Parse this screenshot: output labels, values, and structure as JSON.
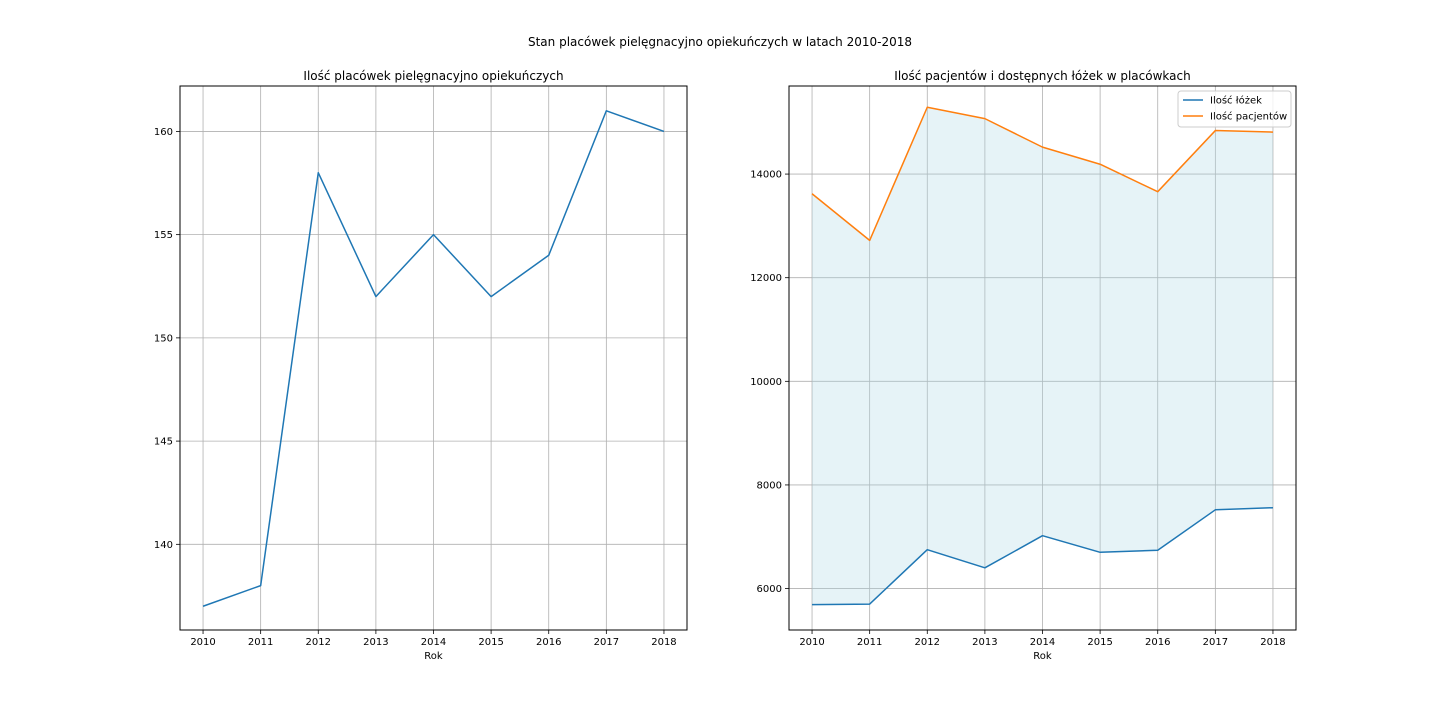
{
  "figure": {
    "suptitle": "Stan placówek pielęgnacyjno opiekuńczych w latach 2010-2018"
  },
  "chart_data": [
    {
      "type": "line",
      "title": "Ilość placówek pielęgnacyjno opiekuńczych",
      "xlabel": "Rok",
      "ylabel": "",
      "x": [
        2010,
        2011,
        2012,
        2013,
        2014,
        2015,
        2016,
        2017,
        2018
      ],
      "series": [
        {
          "values": [
            137,
            138,
            158,
            152,
            155,
            152,
            154,
            161,
            160
          ],
          "color": "#1f77b4"
        }
      ],
      "xlim": [
        2009.6,
        2018.4
      ],
      "ylim": [
        135.85,
        162.2
      ],
      "yticks": [
        140,
        145,
        150,
        155,
        160
      ],
      "xticks": [
        "2010",
        "2011",
        "2012",
        "2013",
        "2014",
        "2015",
        "2016",
        "2017",
        "2018"
      ],
      "grid": true,
      "legend": false
    },
    {
      "type": "line",
      "title": "Ilość pacjentów i dostępnych łóżek w placówkach",
      "xlabel": "Rok",
      "ylabel": "",
      "x": [
        2010,
        2011,
        2012,
        2013,
        2014,
        2015,
        2016,
        2017,
        2018
      ],
      "series": [
        {
          "name": "Ilość łóżek",
          "values": [
            5690,
            5700,
            6750,
            6400,
            7020,
            6700,
            6740,
            7520,
            7560
          ],
          "color": "#1f77b4"
        },
        {
          "name": "Ilość pacjentów",
          "values": [
            13620,
            12720,
            15290,
            15070,
            14520,
            14190,
            13660,
            14840,
            14810
          ],
          "color": "#ff7f0e"
        }
      ],
      "fill_between": {
        "color": "#add8e6",
        "opacity": 0.3
      },
      "xlim": [
        2009.6,
        2018.4
      ],
      "ylim": [
        5200,
        15700
      ],
      "yticks": [
        6000,
        8000,
        10000,
        12000,
        14000
      ],
      "xticks": [
        "2010",
        "2011",
        "2012",
        "2013",
        "2014",
        "2015",
        "2016",
        "2017",
        "2018"
      ],
      "grid": true,
      "legend": "top-right"
    }
  ]
}
